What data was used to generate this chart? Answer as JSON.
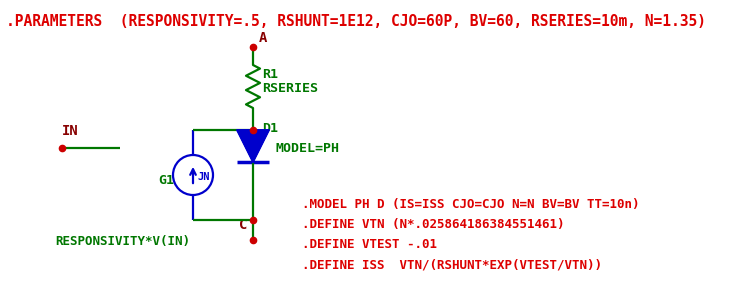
{
  "bg_color": "#ffffff",
  "title_text": ".PARAMETERS  (RESPONSIVITY=.5, RSHUNT=1E12, CJO=60P, BV=60, RSERIES=10m, N=1.35)",
  "title_color": "#dd0000",
  "title_fontsize": 10.5,
  "green_color": "#007700",
  "blue_color": "#0000cc",
  "red_color": "#dd0000",
  "dark_red": "#880000",
  "node_color": "#cc0000",
  "label_A": "A",
  "label_C": "C",
  "label_IN": "IN",
  "label_R1": "R1",
  "label_RSERIES": "RSERIES",
  "label_D1": "D1",
  "label_MODEL": "MODEL=PH",
  "label_G1": "G1",
  "label_JN": "JN",
  "label_resp": "RESPONSIVITY*V(IN)",
  "model_line1": ".MODEL PH D (IS=ISS CJO=CJO N=N BV=BV TT=10n)",
  "model_line2": ".DEFINE VTN (N*.025864186384551461)",
  "model_line3": ".DEFINE VTEST -.01",
  "model_line4": ".DEFINE ISS  VTN/(RSHUNT*EXP(VTEST/VTN))",
  "font_family": "monospace"
}
